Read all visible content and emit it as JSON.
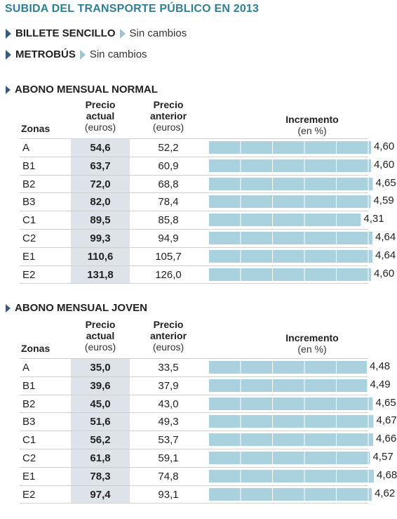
{
  "title": "SUBIDA DEL TRANSPORTE PÚBLICO EN 2013",
  "info_items": [
    {
      "label": "BILLETE SENCILLO",
      "value": "Sin cambios"
    },
    {
      "label": "METROBÚS",
      "value": "Sin cambios"
    }
  ],
  "headers": {
    "zonas": "Zonas",
    "precio_actual": [
      "Precio",
      "actual",
      "(euros)"
    ],
    "precio_anterior": [
      "Precio",
      "anterior",
      "(euros)"
    ],
    "incremento": [
      "Incremento",
      "(en %)"
    ]
  },
  "colors": {
    "title": "#2f7f95",
    "bar": "#a9d1de",
    "highlight": "#dde3e8"
  },
  "chart_data": [
    {
      "type": "table",
      "title": "ABONO MENSUAL NORMAL",
      "categories": [
        "A",
        "B1",
        "B2",
        "B3",
        "C1",
        "C2",
        "E1",
        "E2"
      ],
      "precio_actual": [
        "54,6",
        "63,7",
        "72,0",
        "82,0",
        "89,5",
        "99,3",
        "110,6",
        "131,8"
      ],
      "precio_anterior": [
        "52,2",
        "60,9",
        "68,8",
        "78,4",
        "85,8",
        "94,9",
        "105,7",
        "126,0"
      ],
      "incremento_labels": [
        "4,60",
        "4,60",
        "4,65",
        "4,59",
        "4,31",
        "4,64",
        "4,64",
        "4,60"
      ],
      "incremento": [
        4.6,
        4.6,
        4.65,
        4.59,
        4.31,
        4.64,
        4.64,
        4.6
      ]
    },
    {
      "type": "table",
      "title": "ABONO MENSUAL JOVEN",
      "categories": [
        "A",
        "B1",
        "B2",
        "B3",
        "C1",
        "C2",
        "E1",
        "E2"
      ],
      "precio_actual": [
        "35,0",
        "39,6",
        "45,0",
        "51,6",
        "56,2",
        "61,8",
        "78,3",
        "97,4"
      ],
      "precio_anterior": [
        "33,5",
        "37,9",
        "43,0",
        "49,3",
        "53,7",
        "59,1",
        "74,8",
        "93,1"
      ],
      "incremento_labels": [
        "4,48",
        "4,49",
        "4,65",
        "4,67",
        "4,66",
        "4,57",
        "4,68",
        "4,62"
      ],
      "incremento": [
        4.48,
        4.49,
        4.65,
        4.67,
        4.66,
        4.57,
        4.68,
        4.62
      ]
    }
  ]
}
